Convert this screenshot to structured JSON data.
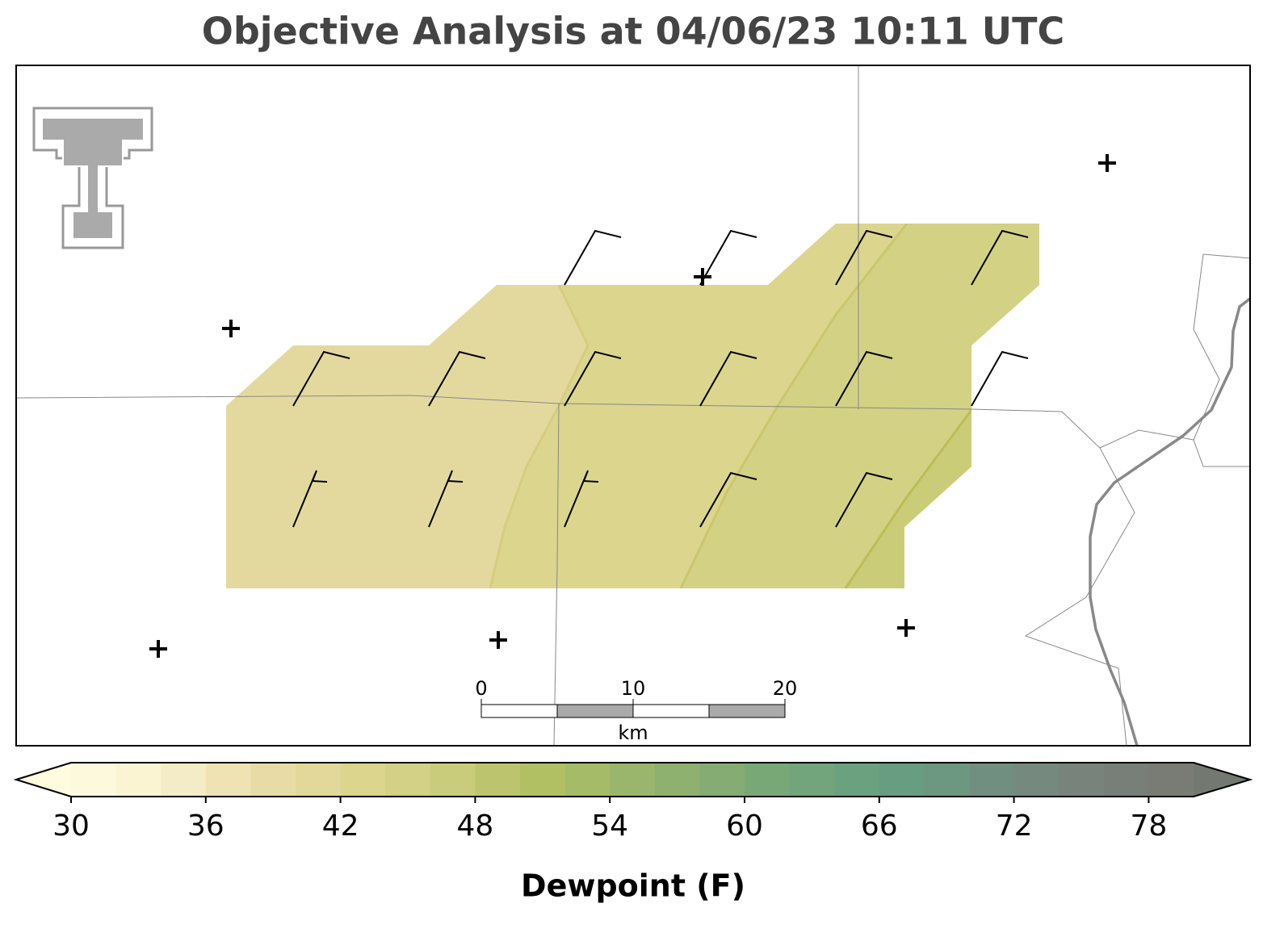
{
  "title": "Objective Analysis at 04/06/23 10:11 UTC",
  "colorbar": {
    "label": "Dewpoint (F)",
    "levels": [
      30,
      32,
      34,
      36,
      38,
      40,
      42,
      44,
      46,
      48,
      50,
      52,
      54,
      56,
      58,
      60,
      62,
      64,
      66,
      68,
      70,
      72,
      74,
      76,
      78,
      80
    ],
    "colors": [
      "#fdf9dc",
      "#faf4d3",
      "#f4ecc6",
      "#efe3b3",
      "#e8dca6",
      "#e2d89a",
      "#dbd58e",
      "#d2d184",
      "#c9cc7a",
      "#bcc56e",
      "#b2c064",
      "#a6bb68",
      "#9ab66c",
      "#8fb170",
      "#84ac73",
      "#79a877",
      "#72a57b",
      "#6aa17f",
      "#679d80",
      "#6c9780",
      "#718f80",
      "#75897e",
      "#77837b",
      "#787f78",
      "#787c75"
    ],
    "under_color": "#fefbdf",
    "over_color": "#737870",
    "ticks": [
      30,
      36,
      42,
      48,
      54,
      60,
      66,
      72,
      78
    ]
  },
  "scalebar": {
    "lim": [
      0,
      20
    ],
    "ticks": [
      0,
      10,
      20
    ],
    "unit": "km"
  }
}
